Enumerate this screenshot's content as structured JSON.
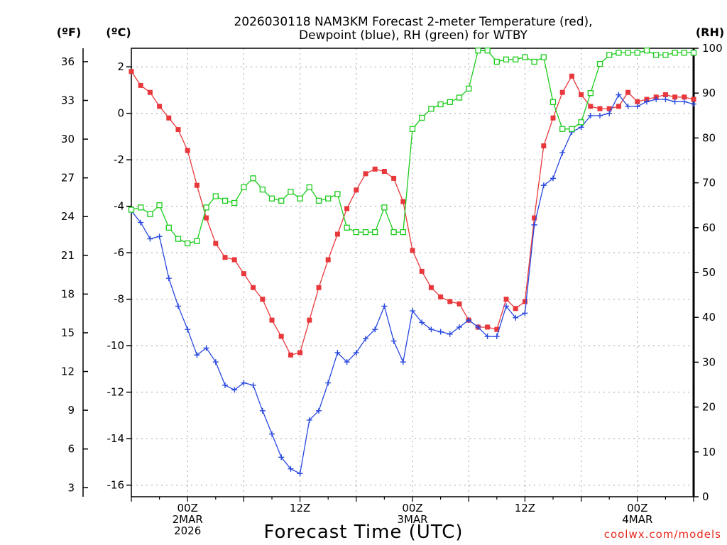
{
  "chart_data": {
    "type": "line",
    "title_lines": [
      "2026030118 NAM3KM Forecast 2-meter Temperature (red),",
      "Dewpoint (blue), RH (green) for WTBY"
    ],
    "unit_labels": {
      "fahrenheit": "(ºF)",
      "celsius": "(ºC)",
      "rh": "(RH)"
    },
    "xlabel": "Forecast Time (UTC)",
    "watermark": "coolwx.com/models",
    "x_unit": "hours after 2026-03-01 18Z",
    "xlim": [
      0,
      60
    ],
    "y_celsius_lim": [
      -16.5,
      2.8
    ],
    "y_rh_lim": [
      0,
      100
    ],
    "y_celsius_ticks": [
      2,
      0,
      -2,
      -4,
      -6,
      -8,
      -10,
      -12,
      -14,
      -16
    ],
    "y_fahrenheit_ticks": [
      36,
      33,
      30,
      27,
      24,
      21,
      18,
      15,
      12,
      9,
      6,
      3
    ],
    "y_rh_ticks": [
      100,
      90,
      80,
      70,
      60,
      50,
      40,
      30,
      20,
      10,
      0
    ],
    "x_ticks": [
      {
        "x": 6,
        "lines": [
          "00Z",
          "2MAR",
          "2026"
        ]
      },
      {
        "x": 18,
        "lines": [
          "12Z"
        ]
      },
      {
        "x": 30,
        "lines": [
          "00Z",
          "3MAR"
        ]
      },
      {
        "x": 42,
        "lines": [
          "12Z"
        ]
      },
      {
        "x": 54,
        "lines": [
          "00Z",
          "4MAR"
        ]
      }
    ],
    "grid": true,
    "series": [
      {
        "name": "Temperature",
        "units": "C",
        "color": "#e8383c",
        "marker": "filled-square",
        "x": [
          0,
          1,
          2,
          3,
          4,
          5,
          6,
          7,
          8,
          9,
          10,
          11,
          12,
          13,
          14,
          15,
          16,
          17,
          18,
          19,
          20,
          21,
          22,
          23,
          24,
          25,
          26,
          27,
          28,
          29,
          30,
          31,
          32,
          33,
          34,
          35,
          36,
          37,
          38,
          39,
          40,
          41,
          42,
          43,
          44,
          45,
          46,
          47,
          48,
          49,
          50,
          51,
          52,
          53,
          54,
          55,
          56,
          57,
          58,
          59,
          60
        ],
        "values": [
          1.8,
          1.2,
          0.9,
          0.3,
          -0.2,
          -0.7,
          -1.6,
          -3.1,
          -4.5,
          -5.6,
          -6.2,
          -6.3,
          -6.9,
          -7.5,
          -8.0,
          -8.9,
          -9.6,
          -10.4,
          -10.3,
          -8.9,
          -7.5,
          -6.3,
          -5.2,
          -4.1,
          -3.3,
          -2.6,
          -2.4,
          -2.5,
          -2.8,
          -3.8,
          -5.9,
          -6.8,
          -7.5,
          -7.9,
          -8.1,
          -8.2,
          -8.9,
          -9.2,
          -9.2,
          -9.3,
          -8.0,
          -8.4,
          -8.1,
          -4.5,
          -1.4,
          -0.2,
          0.9,
          1.6,
          0.8,
          0.3,
          0.2,
          0.2,
          0.3,
          0.9,
          0.5,
          0.6,
          0.7,
          0.8,
          0.7,
          0.7,
          0.6
        ]
      },
      {
        "name": "Dewpoint",
        "units": "C",
        "color": "#2848e0",
        "marker": "plus",
        "x": [
          0,
          1,
          2,
          3,
          4,
          5,
          6,
          7,
          8,
          9,
          10,
          11,
          12,
          13,
          14,
          15,
          16,
          17,
          18,
          19,
          20,
          21,
          22,
          23,
          24,
          25,
          26,
          27,
          28,
          29,
          30,
          31,
          32,
          33,
          34,
          35,
          36,
          37,
          38,
          39,
          40,
          41,
          42,
          43,
          44,
          45,
          46,
          47,
          48,
          49,
          50,
          51,
          52,
          53,
          54,
          55,
          56,
          57,
          58,
          59,
          60
        ],
        "values": [
          -4.2,
          -4.7,
          -5.4,
          -5.3,
          -7.1,
          -8.3,
          -9.3,
          -10.4,
          -10.1,
          -10.7,
          -11.7,
          -11.9,
          -11.6,
          -11.7,
          -12.8,
          -13.8,
          -14.8,
          -15.3,
          -15.5,
          -13.2,
          -12.8,
          -11.6,
          -10.3,
          -10.7,
          -10.3,
          -9.7,
          -9.3,
          -8.3,
          -9.8,
          -10.7,
          -8.5,
          -9.0,
          -9.3,
          -9.4,
          -9.5,
          -9.2,
          -8.9,
          -9.2,
          -9.6,
          -9.6,
          -8.3,
          -8.8,
          -8.6,
          -4.8,
          -3.1,
          -2.8,
          -1.7,
          -0.8,
          -0.6,
          -0.1,
          -0.1,
          0.0,
          0.8,
          0.3,
          0.3,
          0.5,
          0.6,
          0.6,
          0.5,
          0.5,
          0.4
        ]
      },
      {
        "name": "RH",
        "units": "%",
        "color": "#1ccc1c",
        "marker": "open-square",
        "x": [
          0,
          1,
          2,
          3,
          4,
          5,
          6,
          7,
          8,
          9,
          10,
          11,
          12,
          13,
          14,
          15,
          16,
          17,
          18,
          19,
          20,
          21,
          22,
          23,
          24,
          25,
          26,
          27,
          28,
          29,
          30,
          31,
          32,
          33,
          34,
          35,
          36,
          37,
          38,
          39,
          40,
          41,
          42,
          43,
          44,
          45,
          46,
          47,
          48,
          49,
          50,
          51,
          52,
          53,
          54,
          55,
          56,
          57,
          58,
          59,
          60
        ],
        "values": [
          64,
          64.5,
          63,
          65,
          60,
          57.5,
          56.5,
          57,
          64.5,
          67,
          66,
          65.5,
          69,
          71,
          68.5,
          66.5,
          66,
          68,
          66.5,
          69,
          66,
          66.5,
          67.5,
          60,
          59,
          59,
          59,
          64.5,
          59,
          59,
          82,
          84.5,
          86.5,
          87.5,
          88,
          89,
          91,
          99.5,
          99.5,
          97,
          97.5,
          97.5,
          98,
          97,
          98,
          88,
          82,
          82,
          83.5,
          90,
          96.5,
          98.5,
          99,
          99,
          99,
          99.5,
          98.5,
          98.5,
          99,
          99,
          99
        ]
      }
    ]
  }
}
